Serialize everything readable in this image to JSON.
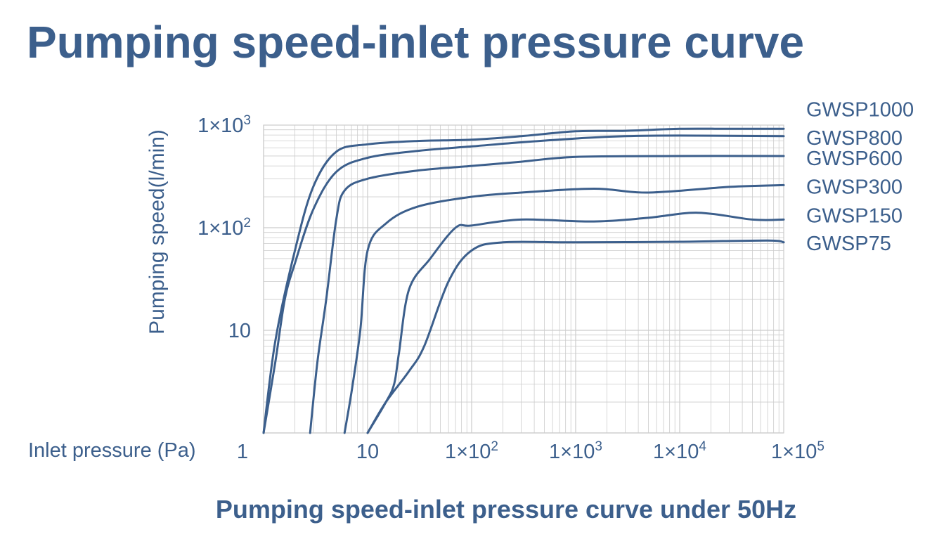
{
  "page_title": "Pumping speed-inlet pressure curve",
  "caption": "Pumping speed-inlet pressure curve under 50Hz",
  "colors": {
    "accent": "#3c5f8c",
    "grid": "#cccccc",
    "background": "#ffffff"
  },
  "chart_data": {
    "type": "line",
    "title": "Pumping speed-inlet pressure curve",
    "xlabel": "Inlet pressure (Pa)",
    "ylabel": "Pumping speed(l/min)",
    "xscale": "log",
    "yscale": "log",
    "xlim": [
      1,
      100000
    ],
    "ylim": [
      1,
      1000
    ],
    "grid": true,
    "x_ticks": [
      {
        "value": 1,
        "label": "1"
      },
      {
        "value": 10,
        "label": "10"
      },
      {
        "value": 100,
        "label": "1×10",
        "exp": "2"
      },
      {
        "value": 1000,
        "label": "1×10",
        "exp": "3"
      },
      {
        "value": 10000,
        "label": "1×10",
        "exp": "4"
      },
      {
        "value": 100000,
        "label": "1×10",
        "exp": "5"
      }
    ],
    "y_ticks": [
      {
        "value": 10,
        "label": "10"
      },
      {
        "value": 100,
        "label": "1×10",
        "exp": "2"
      },
      {
        "value": 1000,
        "label": "1×10",
        "exp": "3"
      }
    ],
    "legend_placement": "right",
    "series": [
      {
        "name": "GWSP1000",
        "points": [
          [
            1,
            1
          ],
          [
            1.3,
            8
          ],
          [
            2,
            60
          ],
          [
            3,
            250
          ],
          [
            5,
            550
          ],
          [
            10,
            650
          ],
          [
            30,
            700
          ],
          [
            100,
            720
          ],
          [
            300,
            780
          ],
          [
            1000,
            870
          ],
          [
            3000,
            880
          ],
          [
            10000,
            920
          ],
          [
            30000,
            920
          ],
          [
            100000,
            920
          ]
        ]
      },
      {
        "name": "GWSP800",
        "points": [
          [
            1,
            1
          ],
          [
            1.3,
            5
          ],
          [
            1.6,
            20
          ],
          [
            2,
            45
          ],
          [
            3,
            150
          ],
          [
            5,
            350
          ],
          [
            10,
            480
          ],
          [
            30,
            560
          ],
          [
            100,
            620
          ],
          [
            300,
            680
          ],
          [
            1000,
            740
          ],
          [
            3000,
            780
          ],
          [
            10000,
            790
          ],
          [
            100000,
            780
          ]
        ]
      },
      {
        "name": "GWSP600",
        "points": [
          [
            2.8,
            1
          ],
          [
            3.3,
            5
          ],
          [
            4,
            20
          ],
          [
            5,
            120
          ],
          [
            6,
            230
          ],
          [
            10,
            300
          ],
          [
            30,
            360
          ],
          [
            100,
            400
          ],
          [
            300,
            440
          ],
          [
            1000,
            490
          ],
          [
            10000,
            500
          ],
          [
            100000,
            500
          ]
        ]
      },
      {
        "name": "GWSP300",
        "points": [
          [
            6,
            1
          ],
          [
            7,
            2.5
          ],
          [
            8.5,
            10
          ],
          [
            10,
            60
          ],
          [
            15,
            110
          ],
          [
            30,
            160
          ],
          [
            100,
            200
          ],
          [
            300,
            220
          ],
          [
            1500,
            240
          ],
          [
            5000,
            220
          ],
          [
            30000,
            250
          ],
          [
            100000,
            260
          ]
        ]
      },
      {
        "name": "GWSP150",
        "points": [
          [
            10,
            1
          ],
          [
            15,
            2
          ],
          [
            18,
            3
          ],
          [
            20,
            6
          ],
          [
            25,
            25
          ],
          [
            40,
            50
          ],
          [
            70,
            100
          ],
          [
            100,
            105
          ],
          [
            300,
            120
          ],
          [
            1500,
            115
          ],
          [
            5000,
            125
          ],
          [
            15000,
            140
          ],
          [
            50000,
            120
          ],
          [
            100000,
            120
          ]
        ]
      },
      {
        "name": "GWSP75",
        "points": [
          [
            10,
            1
          ],
          [
            15,
            2
          ],
          [
            25,
            4
          ],
          [
            35,
            7
          ],
          [
            60,
            30
          ],
          [
            100,
            60
          ],
          [
            200,
            72
          ],
          [
            1000,
            72
          ],
          [
            10000,
            73
          ],
          [
            70000,
            75
          ],
          [
            100000,
            72
          ]
        ]
      }
    ]
  }
}
